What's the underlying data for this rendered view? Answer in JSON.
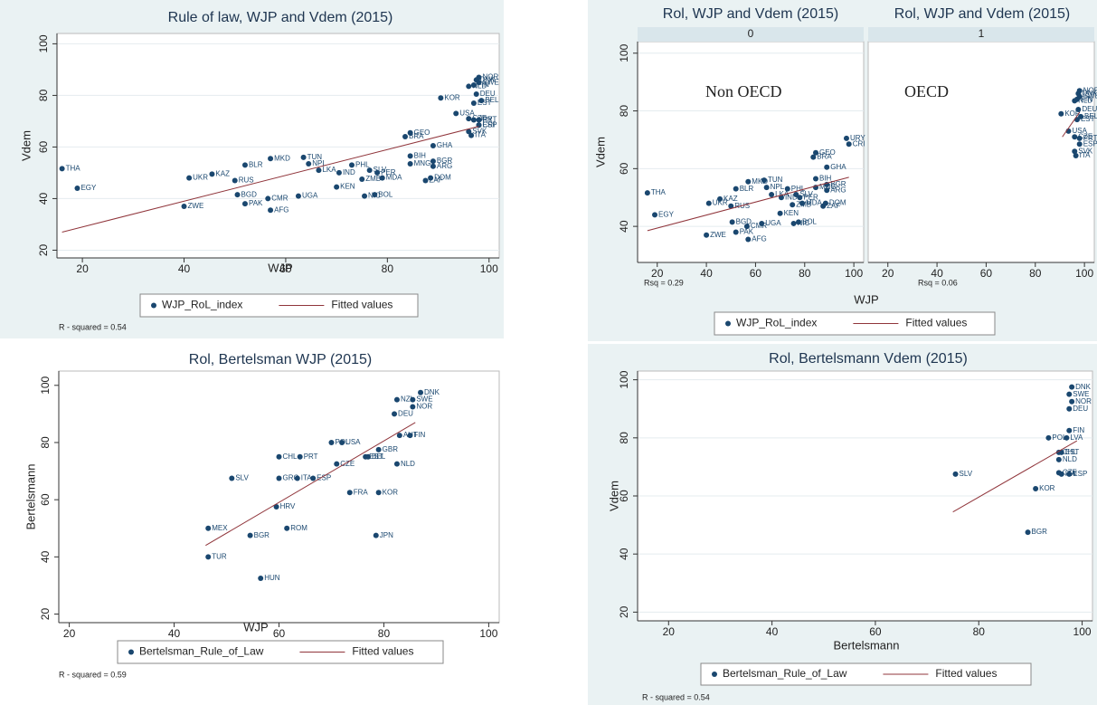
{
  "chart_data": [
    {
      "type": "scatter",
      "title": "Rule of law, WJP and Vdem (2015)",
      "x_label": "WJP",
      "y_label": "Vdem",
      "note": "R - squared = 0.54",
      "xlim": [
        15,
        102
      ],
      "ylim": [
        17,
        104
      ],
      "xticks": [
        20,
        40,
        60,
        80,
        100
      ],
      "yticks": [
        20,
        40,
        60,
        80,
        100
      ],
      "grid": true,
      "series": [
        {
          "name": "WJP_RoL_index",
          "mode": "markers",
          "color": "#1a476f",
          "labels": [
            "THA",
            "EGY",
            "ZWE",
            "UKR",
            "KAZ",
            "RUS",
            "BGD",
            "BLR",
            "PAK",
            "MKD",
            "AFG",
            "CMR",
            "UGA",
            "TUN",
            "NPL",
            "LKA",
            "KEN",
            "IND",
            "PHL",
            "ZMB",
            "NIC",
            "BOL",
            "SLV",
            "PER",
            "MDA",
            "BRA",
            "GEO",
            "BIH",
            "MNG",
            "GHA",
            "BGR",
            "ARG",
            "DOM",
            "ZAF",
            "URY",
            "CRI",
            "KOR",
            "USA",
            "CZE",
            "SVK",
            "ITA",
            "EST",
            "PRT",
            "ESP",
            "DEU",
            "BEL",
            "NLD",
            "FIN",
            "SWE",
            "DNK",
            "NOR"
          ],
          "x": [
            16,
            19,
            40,
            41,
            45.5,
            50,
            50.5,
            52,
            52,
            57,
            57,
            56.5,
            62.5,
            63.5,
            64.5,
            66.5,
            70,
            70.5,
            73,
            75,
            75.5,
            77.5,
            76.5,
            78,
            79,
            83.5,
            84.5,
            84.5,
            84.5,
            89,
            89,
            89,
            88.5,
            87.5,
            97,
            98,
            90.5,
            93.5,
            96,
            96,
            96.5,
            97,
            98,
            98,
            97.5,
            98.5,
            96,
            97,
            98,
            97.5,
            98
          ],
          "values": [
            51.6,
            44,
            37,
            48,
            49.5,
            47,
            41.5,
            53,
            38,
            55.5,
            35.5,
            40,
            41,
            56,
            53.5,
            51,
            44.5,
            50,
            53,
            47.5,
            41,
            41.5,
            51,
            50,
            48,
            64,
            65.5,
            56.5,
            53.5,
            60.5,
            54.5,
            52.5,
            48,
            47,
            70.5,
            68.5,
            79,
            73,
            71,
            66,
            64.5,
            77,
            70.5,
            68.5,
            80.5,
            78,
            83.5,
            84,
            85,
            86,
            87
          ]
        },
        {
          "name": "Fitted values",
          "mode": "line",
          "color": "#90353b",
          "x": [
            16,
            98
          ],
          "values": [
            27,
            68
          ]
        }
      ]
    },
    {
      "type": "scatter",
      "title": "Rol, WJP and Vdem (2015)",
      "facet": "0",
      "annotation": "Non OECD",
      "x_label": "WJP",
      "y_label": "Vdem",
      "note": "Rsq = 0.29",
      "xlim": [
        12,
        104
      ],
      "ylim": [
        27.5,
        104
      ],
      "xticks": [
        20,
        40,
        60,
        80,
        100
      ],
      "yticks": [
        40,
        60,
        80,
        100
      ],
      "grid": true,
      "series": [
        {
          "name": "WJP_RoL_index",
          "mode": "markers",
          "color": "#1a476f",
          "labels": [
            "THA",
            "EGY",
            "ZWE",
            "UKR",
            "KAZ",
            "RUS",
            "BGD",
            "BLR",
            "PAK",
            "MKD",
            "AFG",
            "CMR",
            "UGA",
            "TUN",
            "NPL",
            "LKA",
            "KEN",
            "IND",
            "PHL",
            "ZMB",
            "NIC",
            "BOL",
            "SLV",
            "PER",
            "MDA",
            "BRA",
            "GEO",
            "BIH",
            "MNG",
            "GHA",
            "BGR",
            "ARG",
            "DOM",
            "ZAF",
            "URY",
            "CRI"
          ],
          "x": [
            16,
            19,
            40,
            41,
            45.5,
            50,
            50.5,
            52,
            52,
            57,
            57,
            56.5,
            62.5,
            63.5,
            64.5,
            66.5,
            70,
            70.5,
            73,
            75,
            75.5,
            77.5,
            76.5,
            78,
            79,
            83.5,
            84.5,
            84.5,
            84.5,
            89,
            89,
            89,
            88.5,
            87.5,
            97,
            98
          ],
          "values": [
            51.6,
            44,
            37,
            48,
            49.5,
            47,
            41.5,
            53,
            38,
            55.5,
            35.5,
            40,
            41,
            56,
            53.5,
            51,
            44.5,
            50,
            53,
            47.5,
            41,
            41.5,
            51,
            50,
            48,
            64,
            65.5,
            56.5,
            53.5,
            60.5,
            54.5,
            52.5,
            48,
            47,
            70.5,
            68.5
          ]
        },
        {
          "name": "Fitted values",
          "mode": "line",
          "color": "#90353b",
          "x": [
            16,
            98
          ],
          "values": [
            38.5,
            57
          ]
        }
      ]
    },
    {
      "type": "scatter",
      "title": "Rol, WJP and Vdem (2015)",
      "facet": "1",
      "annotation": "OECD",
      "note": "Rsq = 0.06",
      "xlim": [
        12,
        104
      ],
      "ylim": [
        27.5,
        104
      ],
      "xticks": [
        20,
        40,
        60,
        80,
        100
      ],
      "grid": true,
      "series": [
        {
          "mode": "markers",
          "color": "#1a476f",
          "labels": [
            "KOR",
            "USA",
            "CZE",
            "SVK",
            "ITA",
            "EST",
            "PRT",
            "ESP",
            "DEU",
            "BEL",
            "NLD",
            "FIN",
            "SWE",
            "DNK",
            "NOR"
          ],
          "x": [
            90.5,
            93.5,
            96,
            96,
            96.5,
            97,
            98,
            98,
            97.5,
            98.5,
            96,
            97,
            98,
            97.5,
            98
          ],
          "values": [
            79,
            73,
            71,
            66,
            64.5,
            77,
            70.5,
            68.5,
            80.5,
            78,
            83.5,
            84,
            85,
            86,
            87
          ]
        },
        {
          "mode": "line",
          "color": "#90353b",
          "x": [
            91,
            98
          ],
          "values": [
            71,
            79.5
          ]
        }
      ]
    },
    {
      "type": "scatter",
      "title": "Rol, Bertelsman WJP (2015)",
      "x_label": "WJP",
      "y_label": "Bertelsmann",
      "note": "R - squared = 0.59",
      "xlim": [
        18,
        102
      ],
      "ylim": [
        17,
        105
      ],
      "xticks": [
        20,
        40,
        60,
        80,
        100
      ],
      "yticks": [
        20,
        40,
        60,
        80,
        100
      ],
      "grid": false,
      "series": [
        {
          "name": "Bertelsman_Rule_of_Law",
          "mode": "markers",
          "color": "#1a476f",
          "labels": [
            "DNK",
            "SWE",
            "NOR",
            "NZL",
            "DEU",
            "AUT",
            "FIN",
            "GBR",
            "NLD",
            "KOR",
            "JPN",
            "FRA",
            "CZE",
            "USA",
            "POL",
            "EST",
            "BEL",
            "ESP",
            "ITA",
            "GRC",
            "PRT",
            "CHL",
            "SLV",
            "HRV",
            "ROM",
            "BGR",
            "MEX",
            "TUR",
            "HUN"
          ],
          "x": [
            87,
            85.5,
            85.5,
            82.5,
            82,
            83,
            85,
            79,
            82.5,
            79,
            78.5,
            73.5,
            71,
            72,
            70,
            76.5,
            77,
            66.5,
            63.5,
            60,
            64,
            60,
            51,
            59.5,
            61.5,
            54.5,
            46.5,
            46.5,
            56.5
          ],
          "values": [
            97.5,
            95,
            92.5,
            95,
            90,
            82.5,
            82.5,
            77.5,
            72.5,
            62.5,
            47.5,
            62.5,
            72.5,
            80,
            80,
            75,
            75,
            67.5,
            67.5,
            67.5,
            75,
            75,
            67.5,
            57.5,
            50,
            47.5,
            50,
            40,
            32.5
          ]
        },
        {
          "name": "Fitted values",
          "mode": "line",
          "color": "#90353b",
          "x": [
            46,
            86
          ],
          "values": [
            44,
            87
          ]
        }
      ]
    },
    {
      "type": "scatter",
      "title": "Rol, Bertelsmann Vdem (2015)",
      "x_label": "Bertelsmann",
      "y_label": "Vdem",
      "note": "R - squared = 0.54",
      "xlim": [
        14,
        102
      ],
      "ylim": [
        17,
        103
      ],
      "xticks": [
        20,
        40,
        60,
        80,
        100
      ],
      "yticks": [
        20,
        40,
        60,
        80,
        100
      ],
      "grid": true,
      "series": [
        {
          "name": "Bertelsman_Rule_of_Law",
          "mode": "markers",
          "color": "#1a476f",
          "labels": [
            "SLV",
            "KOR",
            "BGR",
            "DNK",
            "SWE",
            "NOR",
            "DEU",
            "FIN",
            "LVA",
            "POL",
            "EST",
            "NLD",
            "ESP",
            "ITA",
            "CZE",
            "CHL"
          ],
          "x": [
            75.5,
            91,
            89.5,
            98,
            97.5,
            98,
            97.5,
            97.5,
            97,
            93.5,
            96,
            95.5,
            97.5,
            96,
            95.5,
            95.5
          ],
          "values": [
            67.5,
            62.5,
            47.5,
            97.5,
            95,
            92.5,
            90,
            82.5,
            80,
            80,
            75,
            72.5,
            67.5,
            67.5,
            68,
            75
          ]
        },
        {
          "name": "Fitted values",
          "mode": "line",
          "color": "#90353b",
          "x": [
            75,
            99
          ],
          "values": [
            54.5,
            79
          ]
        }
      ]
    }
  ]
}
